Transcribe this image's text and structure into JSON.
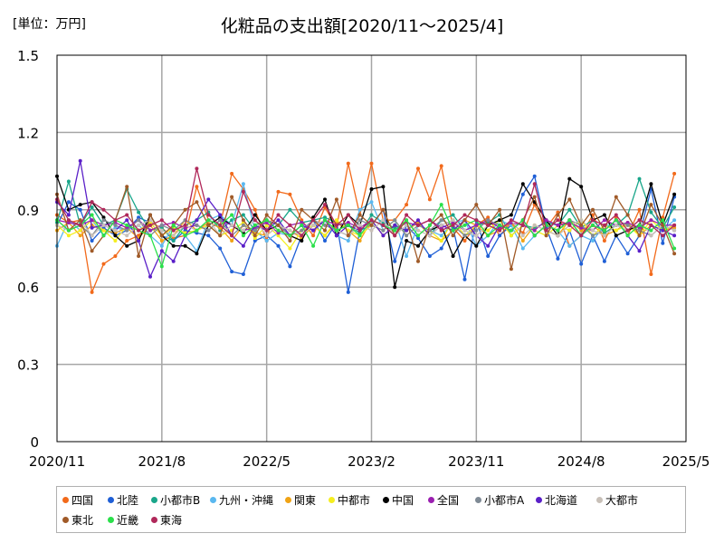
{
  "chart_data": {
    "type": "line",
    "title": "化粧品の支出額[2020/11～2025/4]",
    "unit_label": "[単位：万円]",
    "ylim": [
      0,
      1.5
    ],
    "yticks": [
      "0",
      "0.3",
      "0.6",
      "0.9",
      "1.2",
      "1.5"
    ],
    "xticks": [
      "2020/11",
      "2021/8",
      "2022/5",
      "2023/2",
      "2023/11",
      "2024/8",
      "2025/5"
    ],
    "x_start": "2020/11",
    "x_end": "2025/5",
    "grid": true,
    "legend_position": "bottom",
    "months": [
      "2020/11",
      "2020/12",
      "2021/1",
      "2021/2",
      "2021/3",
      "2021/4",
      "2021/5",
      "2021/6",
      "2021/7",
      "2021/8",
      "2021/9",
      "2021/10",
      "2021/11",
      "2021/12",
      "2022/1",
      "2022/2",
      "2022/3",
      "2022/4",
      "2022/5",
      "2022/6",
      "2022/7",
      "2022/8",
      "2022/9",
      "2022/10",
      "2022/11",
      "2022/12",
      "2023/1",
      "2023/2",
      "2023/3",
      "2023/4",
      "2023/5",
      "2023/6",
      "2023/7",
      "2023/8",
      "2023/9",
      "2023/10",
      "2023/11",
      "2023/12",
      "2024/1",
      "2024/2",
      "2024/3",
      "2024/4",
      "2024/5",
      "2024/6",
      "2024/7",
      "2024/8",
      "2024/9",
      "2024/10",
      "2024/11",
      "2024/12",
      "2025/1",
      "2025/2",
      "2025/3",
      "2025/4"
    ],
    "series": [
      {
        "name": "四国",
        "color": "#f26a1b",
        "values": [
          0.88,
          0.85,
          0.86,
          0.58,
          0.69,
          0.72,
          0.78,
          0.8,
          0.85,
          0.83,
          0.79,
          0.8,
          0.99,
          0.86,
          0.84,
          1.04,
          0.98,
          0.9,
          0.78,
          0.97,
          0.96,
          0.86,
          0.8,
          0.91,
          0.83,
          1.08,
          0.88,
          1.08,
          0.86,
          0.86,
          0.92,
          1.06,
          0.94,
          1.07,
          0.83,
          0.78,
          0.84,
          0.87,
          0.8,
          0.85,
          0.81,
          0.92,
          0.83,
          0.89,
          0.76,
          0.8,
          0.88,
          0.78,
          0.87,
          0.8,
          0.9,
          0.65,
          0.87,
          1.04
        ]
      },
      {
        "name": "北陸",
        "color": "#1f5fd6",
        "values": [
          0.84,
          0.93,
          0.9,
          0.78,
          0.83,
          0.8,
          0.82,
          0.87,
          0.85,
          0.8,
          0.78,
          0.82,
          0.81,
          0.8,
          0.75,
          0.66,
          0.65,
          0.78,
          0.8,
          0.76,
          0.68,
          0.8,
          0.86,
          0.78,
          0.85,
          0.58,
          0.82,
          0.84,
          0.9,
          0.7,
          0.84,
          0.79,
          0.72,
          0.75,
          0.83,
          0.63,
          0.86,
          0.72,
          0.8,
          0.84,
          0.96,
          1.03,
          0.83,
          0.71,
          0.82,
          0.69,
          0.8,
          0.7,
          0.8,
          0.73,
          0.8,
          0.98,
          0.77,
          0.95
        ]
      },
      {
        "name": "小都市B",
        "color": "#1aa68a",
        "values": [
          0.85,
          1.01,
          0.84,
          0.91,
          0.84,
          0.86,
          0.98,
          0.89,
          0.82,
          0.83,
          0.78,
          0.84,
          0.86,
          0.89,
          0.82,
          0.86,
          0.88,
          0.82,
          0.86,
          0.84,
          0.9,
          0.85,
          0.86,
          0.87,
          0.85,
          0.84,
          0.81,
          0.88,
          0.85,
          0.83,
          0.82,
          0.85,
          0.8,
          0.86,
          0.88,
          0.82,
          0.84,
          0.85,
          0.88,
          0.8,
          0.84,
          0.83,
          0.85,
          0.84,
          0.9,
          0.83,
          0.86,
          0.81,
          0.84,
          0.88,
          1.02,
          0.89,
          0.83,
          0.91
        ]
      },
      {
        "name": "九州・沖縄",
        "color": "#5ab8f0",
        "values": [
          0.76,
          0.86,
          0.82,
          0.86,
          0.8,
          0.83,
          0.82,
          0.84,
          0.8,
          0.76,
          0.84,
          0.8,
          0.74,
          0.86,
          0.88,
          0.84,
          1.0,
          0.82,
          0.78,
          0.81,
          0.8,
          0.84,
          0.82,
          0.86,
          0.8,
          0.78,
          0.9,
          0.93,
          0.82,
          0.86,
          0.72,
          0.84,
          0.82,
          0.8,
          0.85,
          0.86,
          0.76,
          0.8,
          0.86,
          0.84,
          0.75,
          0.8,
          0.84,
          0.82,
          0.76,
          0.8,
          0.78,
          0.84,
          0.84,
          0.82,
          0.86,
          0.84,
          0.82,
          0.86
        ]
      },
      {
        "name": "関東",
        "color": "#f0a315",
        "values": [
          0.82,
          0.85,
          0.8,
          0.84,
          0.82,
          0.81,
          0.83,
          0.79,
          0.84,
          0.78,
          0.8,
          0.86,
          0.82,
          0.85,
          0.83,
          0.78,
          0.84,
          0.81,
          0.8,
          0.84,
          0.82,
          0.79,
          0.84,
          0.8,
          0.85,
          0.82,
          0.78,
          0.86,
          0.8,
          0.84,
          0.82,
          0.85,
          0.8,
          0.78,
          0.82,
          0.86,
          0.84,
          0.8,
          0.82,
          0.85,
          0.78,
          0.84,
          0.82,
          0.8,
          0.86,
          0.82,
          0.84,
          0.8,
          0.82,
          0.85,
          0.8,
          0.84,
          0.82,
          0.83
        ]
      },
      {
        "name": "中都市",
        "color": "#f5ee1f",
        "values": [
          0.84,
          0.8,
          0.82,
          0.86,
          0.82,
          0.78,
          0.84,
          0.82,
          0.85,
          0.8,
          0.83,
          0.81,
          0.82,
          0.84,
          0.8,
          0.82,
          0.85,
          0.79,
          0.84,
          0.8,
          0.75,
          0.82,
          0.84,
          0.8,
          0.86,
          0.82,
          0.8,
          0.84,
          0.82,
          0.86,
          0.8,
          0.84,
          0.82,
          0.78,
          0.86,
          0.8,
          0.84,
          0.82,
          0.86,
          0.8,
          0.84,
          0.82,
          0.8,
          0.84,
          0.82,
          0.86,
          0.8,
          0.84,
          0.82,
          0.84,
          0.8,
          0.86,
          0.82,
          0.84
        ]
      },
      {
        "name": "中国",
        "color": "#000000",
        "values": [
          1.03,
          0.9,
          0.92,
          0.93,
          0.87,
          0.8,
          0.76,
          0.78,
          0.88,
          0.8,
          0.76,
          0.76,
          0.73,
          0.84,
          0.87,
          0.84,
          0.81,
          0.88,
          0.82,
          0.84,
          0.8,
          0.78,
          0.87,
          0.94,
          0.8,
          0.88,
          0.84,
          0.98,
          0.99,
          0.6,
          0.78,
          0.76,
          0.82,
          0.84,
          0.72,
          0.8,
          0.76,
          0.84,
          0.86,
          0.88,
          1.0,
          0.93,
          0.86,
          0.8,
          1.02,
          0.99,
          0.86,
          0.88,
          0.8,
          0.82,
          0.84,
          1.0,
          0.84,
          0.96
        ]
      },
      {
        "name": "全国",
        "color": "#9a1fb0",
        "values": [
          0.86,
          0.85,
          0.84,
          0.86,
          0.84,
          0.85,
          0.83,
          0.86,
          0.82,
          0.84,
          0.85,
          0.83,
          0.84,
          0.82,
          0.86,
          0.84,
          0.82,
          0.83,
          0.85,
          0.81,
          0.84,
          0.85,
          0.82,
          0.86,
          0.84,
          0.85,
          0.83,
          0.86,
          0.84,
          0.82,
          0.85,
          0.84,
          0.86,
          0.83,
          0.85,
          0.82,
          0.84,
          0.86,
          0.83,
          0.85,
          0.84,
          0.82,
          0.86,
          0.84,
          0.85,
          0.83,
          0.82,
          0.86,
          0.84,
          0.85,
          0.83,
          0.86,
          0.84,
          0.84
        ]
      },
      {
        "name": "小都市A",
        "color": "#7f8a95",
        "values": [
          0.86,
          0.82,
          0.84,
          0.8,
          0.86,
          0.84,
          0.82,
          0.86,
          0.8,
          0.84,
          0.82,
          0.86,
          0.84,
          0.82,
          0.86,
          0.8,
          0.84,
          0.82,
          0.86,
          0.84,
          0.8,
          0.82,
          0.86,
          0.84,
          0.82,
          0.8,
          0.86,
          0.84,
          0.82,
          0.86,
          0.8,
          0.84,
          0.82,
          0.86,
          0.84,
          0.8,
          0.82,
          0.86,
          0.84,
          0.82,
          0.86,
          0.8,
          0.84,
          0.82,
          0.86,
          0.84,
          0.8,
          0.82,
          0.86,
          0.84,
          0.82,
          0.8,
          0.84,
          0.82
        ]
      },
      {
        "name": "北海道",
        "color": "#5a1fc8",
        "values": [
          0.93,
          0.88,
          1.09,
          0.83,
          0.84,
          0.82,
          0.86,
          0.78,
          0.64,
          0.74,
          0.7,
          0.8,
          0.86,
          0.94,
          0.88,
          0.8,
          0.76,
          0.84,
          0.82,
          0.86,
          0.8,
          0.84,
          0.82,
          0.86,
          0.8,
          0.84,
          0.82,
          0.86,
          0.8,
          0.84,
          0.82,
          0.86,
          0.8,
          0.84,
          0.82,
          0.86,
          0.8,
          0.76,
          0.84,
          0.82,
          0.86,
          0.8,
          0.84,
          0.82,
          0.86,
          0.8,
          0.84,
          0.82,
          0.86,
          0.8,
          0.74,
          0.84,
          0.82,
          0.8
        ]
      },
      {
        "name": "大都市",
        "color": "#c8c0b8",
        "values": [
          0.84,
          0.82,
          0.86,
          0.8,
          0.84,
          0.82,
          0.8,
          0.84,
          0.86,
          0.82,
          0.8,
          0.84,
          0.82,
          0.86,
          0.8,
          0.84,
          0.82,
          0.86,
          0.8,
          0.84,
          0.82,
          0.8,
          0.84,
          0.86,
          0.82,
          0.8,
          0.84,
          0.82,
          0.86,
          0.8,
          0.84,
          0.82,
          0.8,
          0.84,
          0.86,
          0.82,
          0.8,
          0.84,
          0.82,
          0.86,
          0.8,
          0.84,
          0.82,
          0.8,
          0.84,
          0.86,
          0.82,
          0.8,
          0.84,
          0.82,
          0.86,
          0.8,
          0.84,
          0.82
        ]
      },
      {
        "name": "東北",
        "color": "#a05a28",
        "values": [
          0.96,
          0.82,
          0.86,
          0.74,
          0.8,
          0.86,
          0.99,
          0.72,
          0.88,
          0.8,
          0.84,
          0.9,
          0.93,
          0.84,
          0.8,
          0.95,
          0.86,
          0.8,
          0.88,
          0.84,
          0.78,
          0.9,
          0.86,
          0.82,
          0.94,
          0.8,
          0.88,
          0.84,
          0.9,
          0.8,
          0.86,
          0.7,
          0.84,
          0.88,
          0.8,
          0.86,
          0.92,
          0.84,
          0.9,
          0.67,
          0.86,
          0.95,
          0.8,
          0.88,
          0.94,
          0.84,
          0.9,
          0.82,
          0.95,
          0.88,
          0.8,
          0.92,
          0.84,
          0.73
        ]
      },
      {
        "name": "近畿",
        "color": "#2ae04a",
        "values": [
          0.86,
          0.82,
          0.84,
          0.88,
          0.8,
          0.86,
          0.84,
          0.82,
          0.8,
          0.68,
          0.84,
          0.8,
          0.82,
          0.86,
          0.84,
          0.88,
          0.8,
          0.84,
          0.86,
          0.82,
          0.8,
          0.84,
          0.76,
          0.86,
          0.82,
          0.84,
          0.8,
          0.86,
          0.84,
          0.82,
          0.86,
          0.8,
          0.84,
          0.92,
          0.82,
          0.84,
          0.86,
          0.8,
          0.84,
          0.82,
          0.86,
          0.8,
          0.84,
          0.82,
          0.86,
          0.8,
          0.84,
          0.82,
          0.86,
          0.8,
          0.84,
          0.82,
          0.86,
          0.75
        ]
      },
      {
        "name": "東海",
        "color": "#b0285a",
        "values": [
          0.94,
          0.86,
          0.84,
          0.93,
          0.9,
          0.86,
          0.88,
          0.82,
          0.84,
          0.86,
          0.82,
          0.84,
          1.06,
          0.88,
          0.84,
          0.8,
          0.97,
          0.86,
          0.82,
          0.88,
          0.84,
          0.8,
          0.86,
          0.92,
          0.84,
          0.88,
          0.82,
          0.86,
          0.84,
          0.8,
          0.88,
          0.84,
          0.86,
          0.82,
          0.84,
          0.88,
          0.86,
          0.84,
          0.82,
          0.86,
          0.84,
          1.0,
          0.82,
          0.86,
          0.84,
          0.8,
          0.86,
          0.84,
          0.88,
          0.82,
          0.86,
          0.84,
          0.8,
          0.84
        ]
      }
    ]
  }
}
